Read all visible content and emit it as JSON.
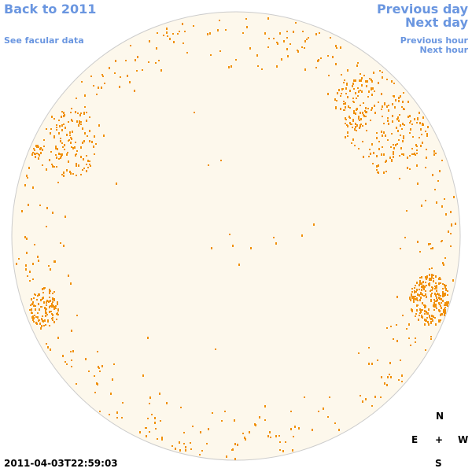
{
  "nav": {
    "back": "Back to 2011",
    "facular": "See facular data",
    "previous_day": "Previous day",
    "next_day": "Next day",
    "previous_hour": "Previous hour",
    "next_hour": "Next hour"
  },
  "timestamp": "2011-04-03T22:59:03",
  "compass": {
    "north": "N",
    "east": "E",
    "center": "+",
    "west": "W",
    "south": "S"
  }
}
